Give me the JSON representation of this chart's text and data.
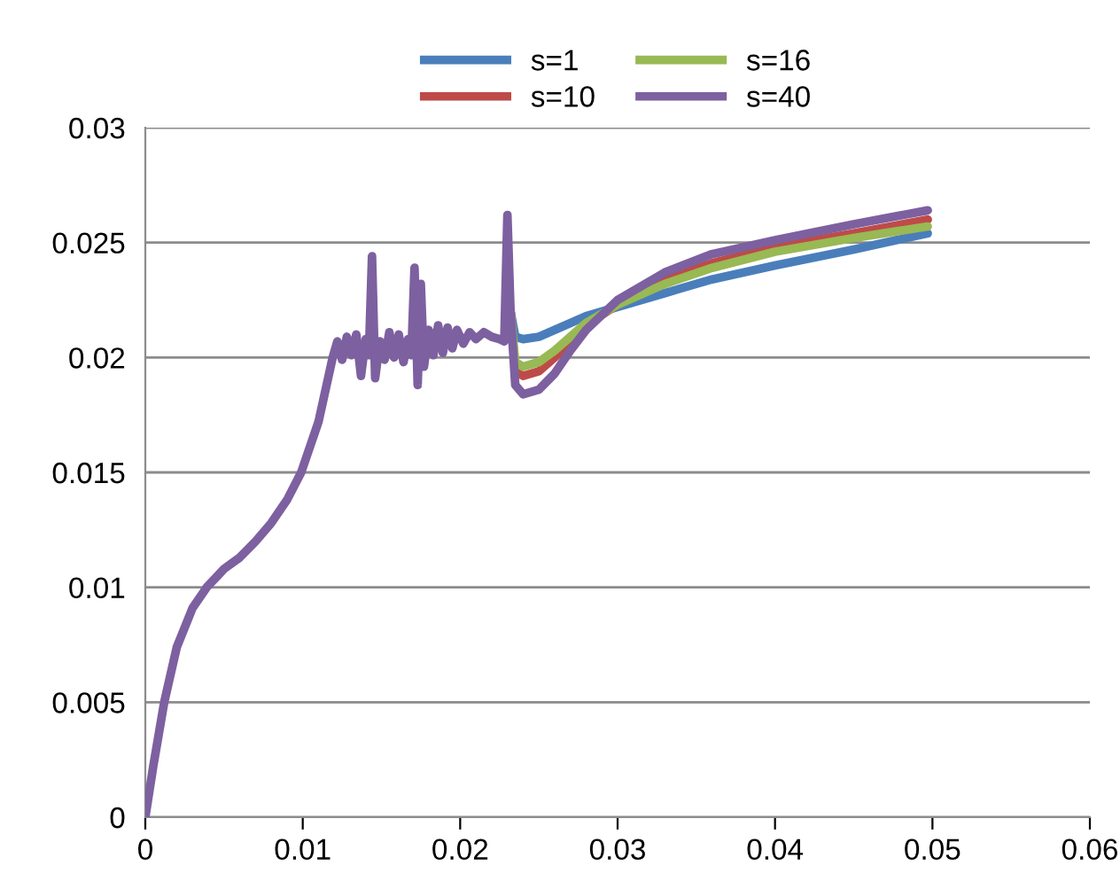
{
  "chart_data": {
    "type": "line",
    "xlim": [
      0,
      0.06
    ],
    "xticks": [
      0,
      0.01,
      0.02,
      0.03,
      0.04,
      0.05,
      0.06
    ],
    "ylim": [
      0,
      0.03
    ],
    "yticks": [
      0,
      0.005,
      0.01,
      0.015,
      0.02,
      0.025,
      0.03
    ],
    "grid": "y",
    "legend": "top",
    "marker": "none",
    "line_style": "solid",
    "series": [
      {
        "name": "s=1",
        "color": "#4a7ebb",
        "x": [
          0.0232,
          0.0235,
          0.024,
          0.025,
          0.026,
          0.027,
          0.028,
          0.03,
          0.033,
          0.036,
          0.04,
          0.045,
          0.0497
        ],
        "values": [
          0.022,
          0.0209,
          0.0208,
          0.0209,
          0.0212,
          0.0215,
          0.0218,
          0.0222,
          0.0228,
          0.0234,
          0.024,
          0.0247,
          0.0254
        ]
      },
      {
        "name": "s=10",
        "color": "#be4b48",
        "x": [
          0.0232,
          0.0235,
          0.024,
          0.025,
          0.026,
          0.027,
          0.028,
          0.03,
          0.033,
          0.036,
          0.04,
          0.045,
          0.0497
        ],
        "values": [
          0.022,
          0.0194,
          0.0192,
          0.0194,
          0.02,
          0.0207,
          0.0214,
          0.0223,
          0.0234,
          0.0241,
          0.0248,
          0.0254,
          0.026
        ]
      },
      {
        "name": "s=16",
        "color": "#98b954",
        "x": [
          0.0232,
          0.0235,
          0.024,
          0.025,
          0.026,
          0.027,
          0.028,
          0.03,
          0.033,
          0.036,
          0.04,
          0.045,
          0.0497
        ],
        "values": [
          0.022,
          0.0198,
          0.0196,
          0.0198,
          0.0203,
          0.0209,
          0.0215,
          0.0223,
          0.0232,
          0.0239,
          0.0246,
          0.0252,
          0.0257
        ]
      },
      {
        "name": "s=40",
        "color": "#7d60a0",
        "x": [
          0,
          0.0005,
          0.0012,
          0.002,
          0.003,
          0.0039,
          0.005,
          0.006,
          0.007,
          0.008,
          0.009,
          0.0099,
          0.011,
          0.0119,
          0.0122,
          0.0125,
          0.0128,
          0.0131,
          0.0134,
          0.0137,
          0.014,
          0.0142,
          0.0144,
          0.0146,
          0.0149,
          0.0152,
          0.0155,
          0.0158,
          0.0161,
          0.0164,
          0.0167,
          0.0169,
          0.0171,
          0.0173,
          0.0175,
          0.0177,
          0.018,
          0.0183,
          0.0186,
          0.0189,
          0.0192,
          0.0195,
          0.0198,
          0.0202,
          0.0206,
          0.021,
          0.0215,
          0.022,
          0.0225,
          0.0228,
          0.023,
          0.0232,
          0.0235,
          0.024,
          0.025,
          0.026,
          0.027,
          0.028,
          0.03,
          0.033,
          0.036,
          0.04,
          0.045,
          0.0497
        ],
        "values": [
          0,
          0.0022,
          0.005,
          0.0074,
          0.0091,
          0.01,
          0.0108,
          0.0113,
          0.012,
          0.0128,
          0.0138,
          0.015,
          0.0172,
          0.02,
          0.0207,
          0.0199,
          0.0209,
          0.0201,
          0.021,
          0.0192,
          0.0208,
          0.0201,
          0.0244,
          0.0191,
          0.0207,
          0.0199,
          0.0211,
          0.02,
          0.021,
          0.0198,
          0.0208,
          0.0201,
          0.0239,
          0.0188,
          0.0232,
          0.0196,
          0.0212,
          0.0201,
          0.0214,
          0.0202,
          0.0213,
          0.0204,
          0.0212,
          0.0206,
          0.0211,
          0.0208,
          0.0211,
          0.0209,
          0.0208,
          0.0207,
          0.0262,
          0.022,
          0.0188,
          0.0184,
          0.0186,
          0.0193,
          0.0203,
          0.0212,
          0.0225,
          0.0237,
          0.0245,
          0.0251,
          0.0258,
          0.0264
        ]
      }
    ]
  }
}
